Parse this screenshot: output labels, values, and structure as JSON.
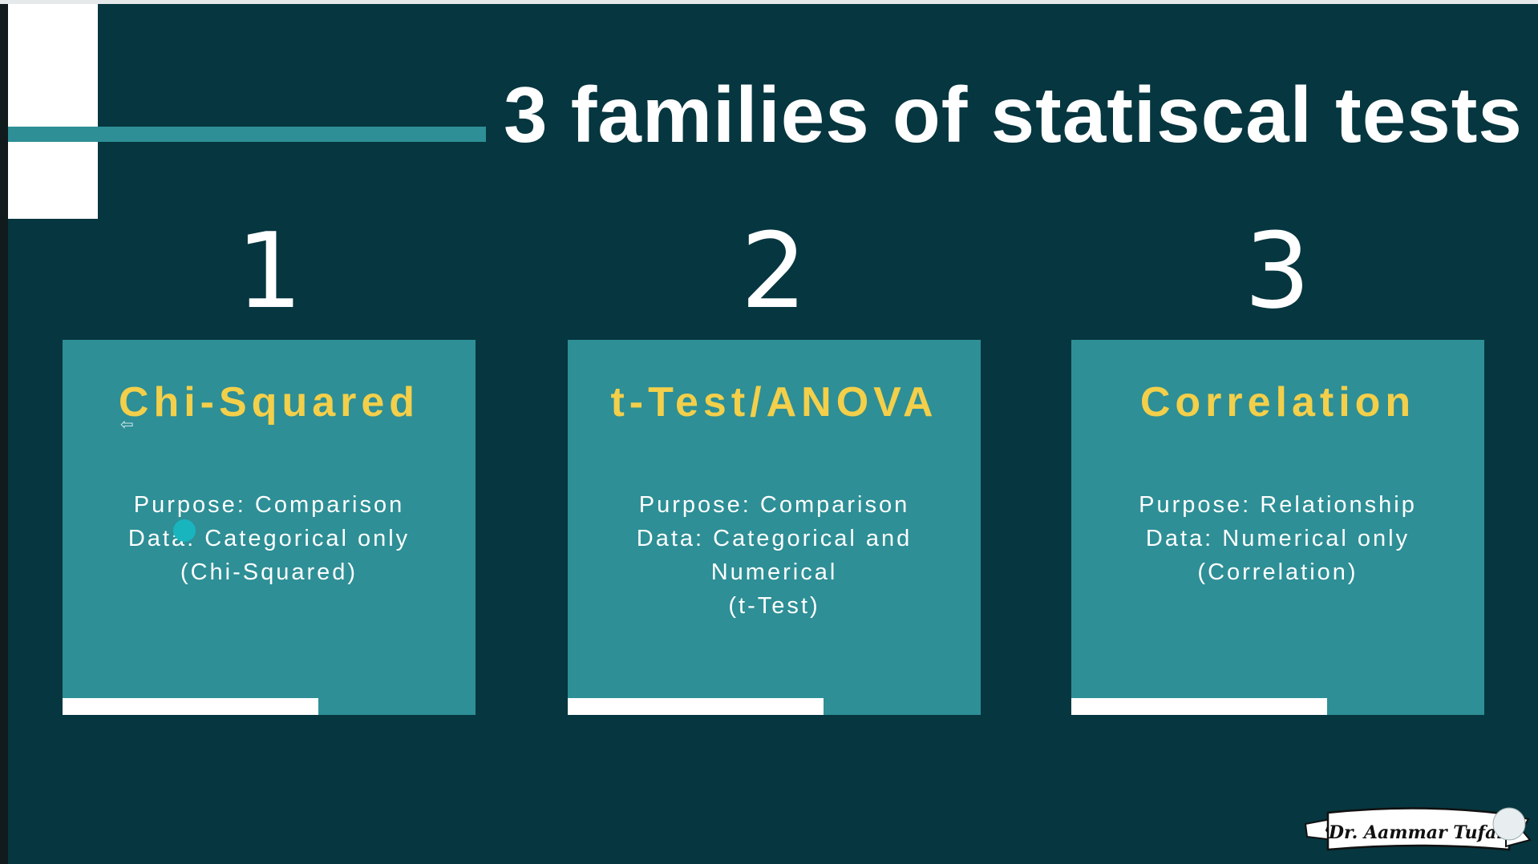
{
  "slide": {
    "title": "3 families of statiscal tests",
    "families": [
      {
        "number": "1",
        "heading": "Chi-Squared",
        "lines": [
          "Purpose: Comparison",
          "Data: Categorical only",
          "(Chi-Squared)"
        ]
      },
      {
        "number": "2",
        "heading": "t-Test/ANOVA",
        "lines": [
          "Purpose: Comparison",
          "Data: Categorical and",
          "Numerical",
          "(t-Test)"
        ]
      },
      {
        "number": "3",
        "heading": "Correlation",
        "lines": [
          "Purpose: Relationship",
          "Data: Numerical only",
          "(Correlation)"
        ]
      }
    ],
    "signature": "Dr. Aammar Tufail"
  },
  "colors": {
    "background": "#06363f",
    "card": "#2e8f96",
    "heading": "#f3cf4a",
    "text": "#ffffff",
    "cursor": "#19b5bf"
  },
  "icons": {
    "cursor": "cursor-dot-icon",
    "pointer": "pointer-arrow-icon",
    "signature": "signature-banner-logo"
  }
}
